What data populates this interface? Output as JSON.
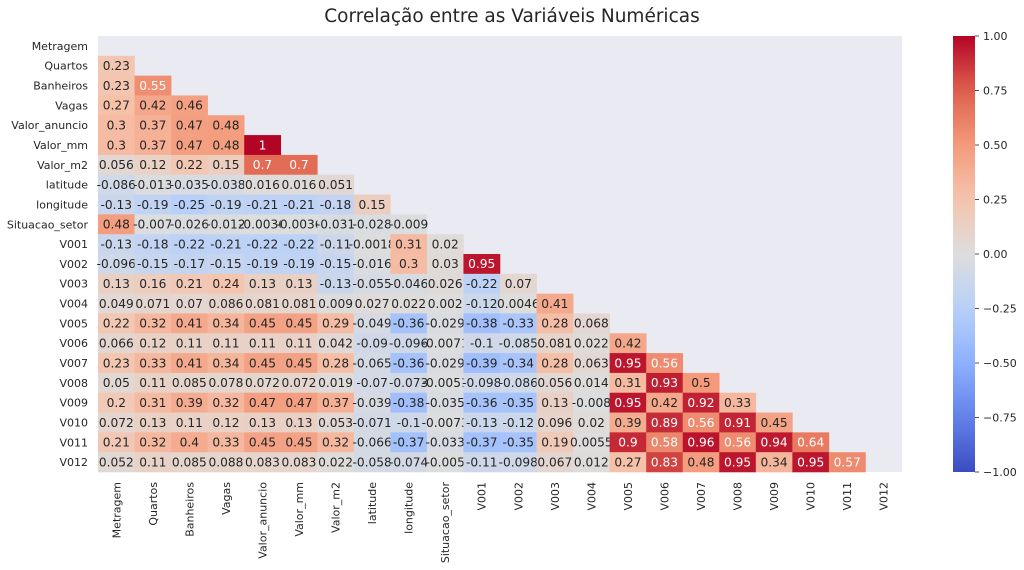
{
  "chart_data": {
    "type": "heatmap",
    "title": "Correlação entre as Variáveis Numéricas",
    "variables": [
      "Metragem",
      "Quartos",
      "Banheiros",
      "Vagas",
      "Valor_anuncio",
      "Valor_mm",
      "Valor_m2",
      "latitude",
      "longitude",
      "Situacao_setor",
      "V001",
      "V002",
      "V003",
      "V004",
      "V005",
      "V006",
      "V007",
      "V008",
      "V009",
      "V010",
      "V011",
      "V012"
    ],
    "mask": "upper-triangle-including-diagonal",
    "lower_triangle": [
      [],
      [
        "0.23"
      ],
      [
        "0.23",
        "0.55"
      ],
      [
        "0.27",
        "0.42",
        "0.46"
      ],
      [
        "0.3",
        "0.37",
        "0.47",
        "0.48"
      ],
      [
        "0.3",
        "0.37",
        "0.47",
        "0.48",
        "1"
      ],
      [
        "0.056",
        "0.12",
        "0.22",
        "0.15",
        "0.7",
        "0.7"
      ],
      [
        "-0.086",
        "-0.013",
        "-0.035",
        "-0.038",
        "0.016",
        "0.016",
        "0.051"
      ],
      [
        "-0.13",
        "-0.19",
        "-0.25",
        "-0.19",
        "-0.21",
        "-0.21",
        "-0.18",
        "0.15"
      ],
      [
        "0.48",
        "-0.007",
        "-0.026",
        "-0.012",
        "-0.0036",
        "-0.0036",
        "-0.031",
        "-0.028",
        "-0.009"
      ],
      [
        "-0.13",
        "-0.18",
        "-0.22",
        "-0.21",
        "-0.22",
        "-0.22",
        "-0.11",
        "-0.0018",
        "0.31",
        "0.02"
      ],
      [
        "-0.096",
        "-0.15",
        "-0.17",
        "-0.15",
        "-0.19",
        "-0.19",
        "-0.15",
        "-0.016",
        "0.3",
        "0.03",
        "0.95"
      ],
      [
        "0.13",
        "0.16",
        "0.21",
        "0.24",
        "0.13",
        "0.13",
        "-0.13",
        "-0.055",
        "-0.046",
        "0.026",
        "-0.22",
        "0.07"
      ],
      [
        "0.049",
        "0.071",
        "0.07",
        "0.086",
        "0.081",
        "0.081",
        "0.009",
        "0.027",
        "0.022",
        "0.002",
        "-0.12",
        "0.0046",
        "0.41"
      ],
      [
        "0.22",
        "0.32",
        "0.41",
        "0.34",
        "0.45",
        "0.45",
        "0.29",
        "-0.049",
        "-0.36",
        "-0.029",
        "-0.38",
        "-0.33",
        "0.28",
        "0.068"
      ],
      [
        "0.066",
        "0.12",
        "0.11",
        "0.11",
        "0.11",
        "0.11",
        "0.042",
        "-0.09",
        "-0.096",
        "-0.0071",
        "-0.1",
        "-0.085",
        "0.081",
        "0.022",
        "0.42"
      ],
      [
        "0.23",
        "0.33",
        "0.41",
        "0.34",
        "0.45",
        "0.45",
        "0.28",
        "-0.065",
        "-0.36",
        "-0.029",
        "-0.39",
        "-0.34",
        "0.28",
        "0.063",
        "0.95",
        "0.56"
      ],
      [
        "0.05",
        "0.11",
        "0.085",
        "0.078",
        "0.072",
        "0.072",
        "0.019",
        "-0.07",
        "-0.073",
        "-0.0051",
        "-0.098",
        "-0.086",
        "0.056",
        "0.014",
        "0.31",
        "0.93",
        "0.5"
      ],
      [
        "0.2",
        "0.31",
        "0.39",
        "0.32",
        "0.47",
        "0.47",
        "0.37",
        "-0.039",
        "-0.38",
        "-0.035",
        "-0.36",
        "-0.35",
        "0.13",
        "-0.008",
        "0.95",
        "0.42",
        "0.92",
        "0.33"
      ],
      [
        "0.072",
        "0.13",
        "0.11",
        "0.12",
        "0.13",
        "0.13",
        "0.053",
        "-0.071",
        "-0.1",
        "-0.0073",
        "-0.13",
        "-0.12",
        "0.096",
        "0.02",
        "0.39",
        "0.89",
        "0.56",
        "0.91",
        "0.45"
      ],
      [
        "0.21",
        "0.32",
        "0.4",
        "0.33",
        "0.45",
        "0.45",
        "0.32",
        "-0.066",
        "-0.37",
        "-0.033",
        "-0.37",
        "-0.35",
        "0.19",
        "0.0055",
        "0.9",
        "0.58",
        "0.96",
        "0.56",
        "0.94",
        "0.64"
      ],
      [
        "0.052",
        "0.11",
        "0.085",
        "0.088",
        "0.083",
        "0.083",
        "0.022",
        "-0.058",
        "-0.074",
        "-0.005",
        "-0.11",
        "-0.098",
        "0.067",
        "0.012",
        "0.27",
        "0.83",
        "0.48",
        "0.95",
        "0.34",
        "0.95",
        "0.57"
      ]
    ],
    "colorbar": {
      "colormap": "coolwarm",
      "range": [
        -1.0,
        1.0
      ],
      "ticks": [
        "1.00",
        "0.75",
        "0.50",
        "0.25",
        "0.00",
        "−0.25",
        "−0.50",
        "−0.75",
        "−1.00"
      ]
    }
  }
}
